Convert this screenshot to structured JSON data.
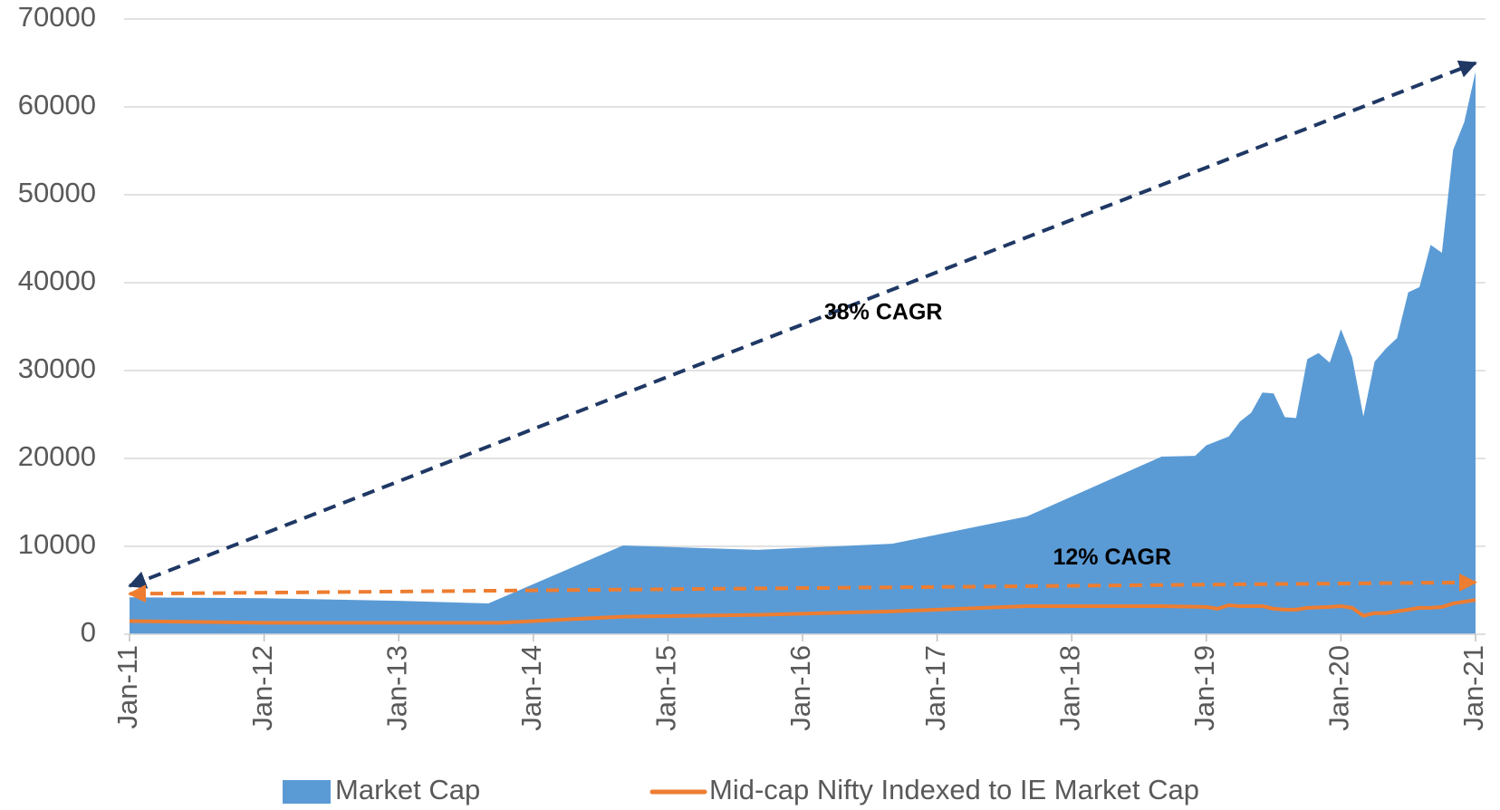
{
  "chart_data": {
    "type": "area_line",
    "ylim": [
      0,
      70000
    ],
    "yticks": [
      0,
      10000,
      20000,
      30000,
      40000,
      50000,
      60000,
      70000
    ],
    "xlim": [
      "2011-01",
      "2021-01"
    ],
    "xticks": [
      {
        "value": "2011-01",
        "label": "Jan-11"
      },
      {
        "value": "2012-01",
        "label": "Jan-12"
      },
      {
        "value": "2013-01",
        "label": "Jan-13"
      },
      {
        "value": "2014-01",
        "label": "Jan-14"
      },
      {
        "value": "2015-01",
        "label": "Jan-15"
      },
      {
        "value": "2016-01",
        "label": "Jan-16"
      },
      {
        "value": "2017-01",
        "label": "Jan-17"
      },
      {
        "value": "2018-01",
        "label": "Jan-18"
      },
      {
        "value": "2019-01",
        "label": "Jan-19"
      },
      {
        "value": "2020-01",
        "label": "Jan-20"
      },
      {
        "value": "2021-01",
        "label": "Jan-21"
      }
    ],
    "grid": true,
    "legend": "bottom",
    "series": [
      {
        "name": "Market Cap",
        "type": "area",
        "color": "#5b9bd5",
        "x": [
          "2011-01",
          "2012-01",
          "2013-01",
          "2013-09",
          "2014-09",
          "2015-09",
          "2016-09",
          "2017-09",
          "2018-09",
          "2018-12",
          "2019-01",
          "2019-02",
          "2019-03",
          "2019-04",
          "2019-05",
          "2019-06",
          "2019-07",
          "2019-08",
          "2019-09",
          "2019-10",
          "2019-11",
          "2019-12",
          "2020-01",
          "2020-02",
          "2020-03",
          "2020-04",
          "2020-05",
          "2020-06",
          "2020-07",
          "2020-08",
          "2020-09",
          "2020-10",
          "2020-11",
          "2020-12",
          "2021-01"
        ],
        "values": [
          4200,
          4100,
          3800,
          3500,
          10100,
          9600,
          10300,
          13400,
          20200,
          20300,
          21500,
          22000,
          22500,
          24200,
          25200,
          27500,
          27400,
          24700,
          24600,
          31300,
          32000,
          30900,
          34700,
          31500,
          24800,
          31000,
          32500,
          33700,
          38900,
          39500,
          44300,
          43400,
          55100,
          58300,
          64000
        ]
      },
      {
        "name": "Mid-cap Nifty Indexed to IE Market Cap",
        "type": "line",
        "color": "#ed7d31",
        "x": [
          "2011-01",
          "2012-01",
          "2013-01",
          "2013-10",
          "2014-01",
          "2014-09",
          "2015-09",
          "2016-09",
          "2017-09",
          "2018-09",
          "2019-01",
          "2019-02",
          "2019-03",
          "2019-04",
          "2019-06",
          "2019-07",
          "2019-08",
          "2019-09",
          "2019-10",
          "2019-12",
          "2020-01",
          "2020-02",
          "2020-03",
          "2020-04",
          "2020-05",
          "2020-06",
          "2020-07",
          "2020-08",
          "2020-09",
          "2020-10",
          "2020-11",
          "2020-12",
          "2021-01"
        ],
        "values": [
          1500,
          1300,
          1300,
          1300,
          1500,
          2000,
          2200,
          2600,
          3200,
          3200,
          3100,
          2900,
          3300,
          3200,
          3200,
          2900,
          2800,
          2800,
          3000,
          3100,
          3200,
          3000,
          2100,
          2400,
          2400,
          2600,
          2800,
          3000,
          3000,
          3100,
          3500,
          3700,
          3900
        ]
      }
    ],
    "annotations": [
      {
        "text": "38% CAGR",
        "color": "#1f3864",
        "from": [
          "2011-01",
          5500
        ],
        "to": [
          "2021-01",
          65000
        ]
      },
      {
        "text": "12% CAGR",
        "color": "#ed7d31",
        "from": [
          "2011-01",
          4600
        ],
        "to": [
          "2021-01",
          5900
        ]
      }
    ]
  }
}
